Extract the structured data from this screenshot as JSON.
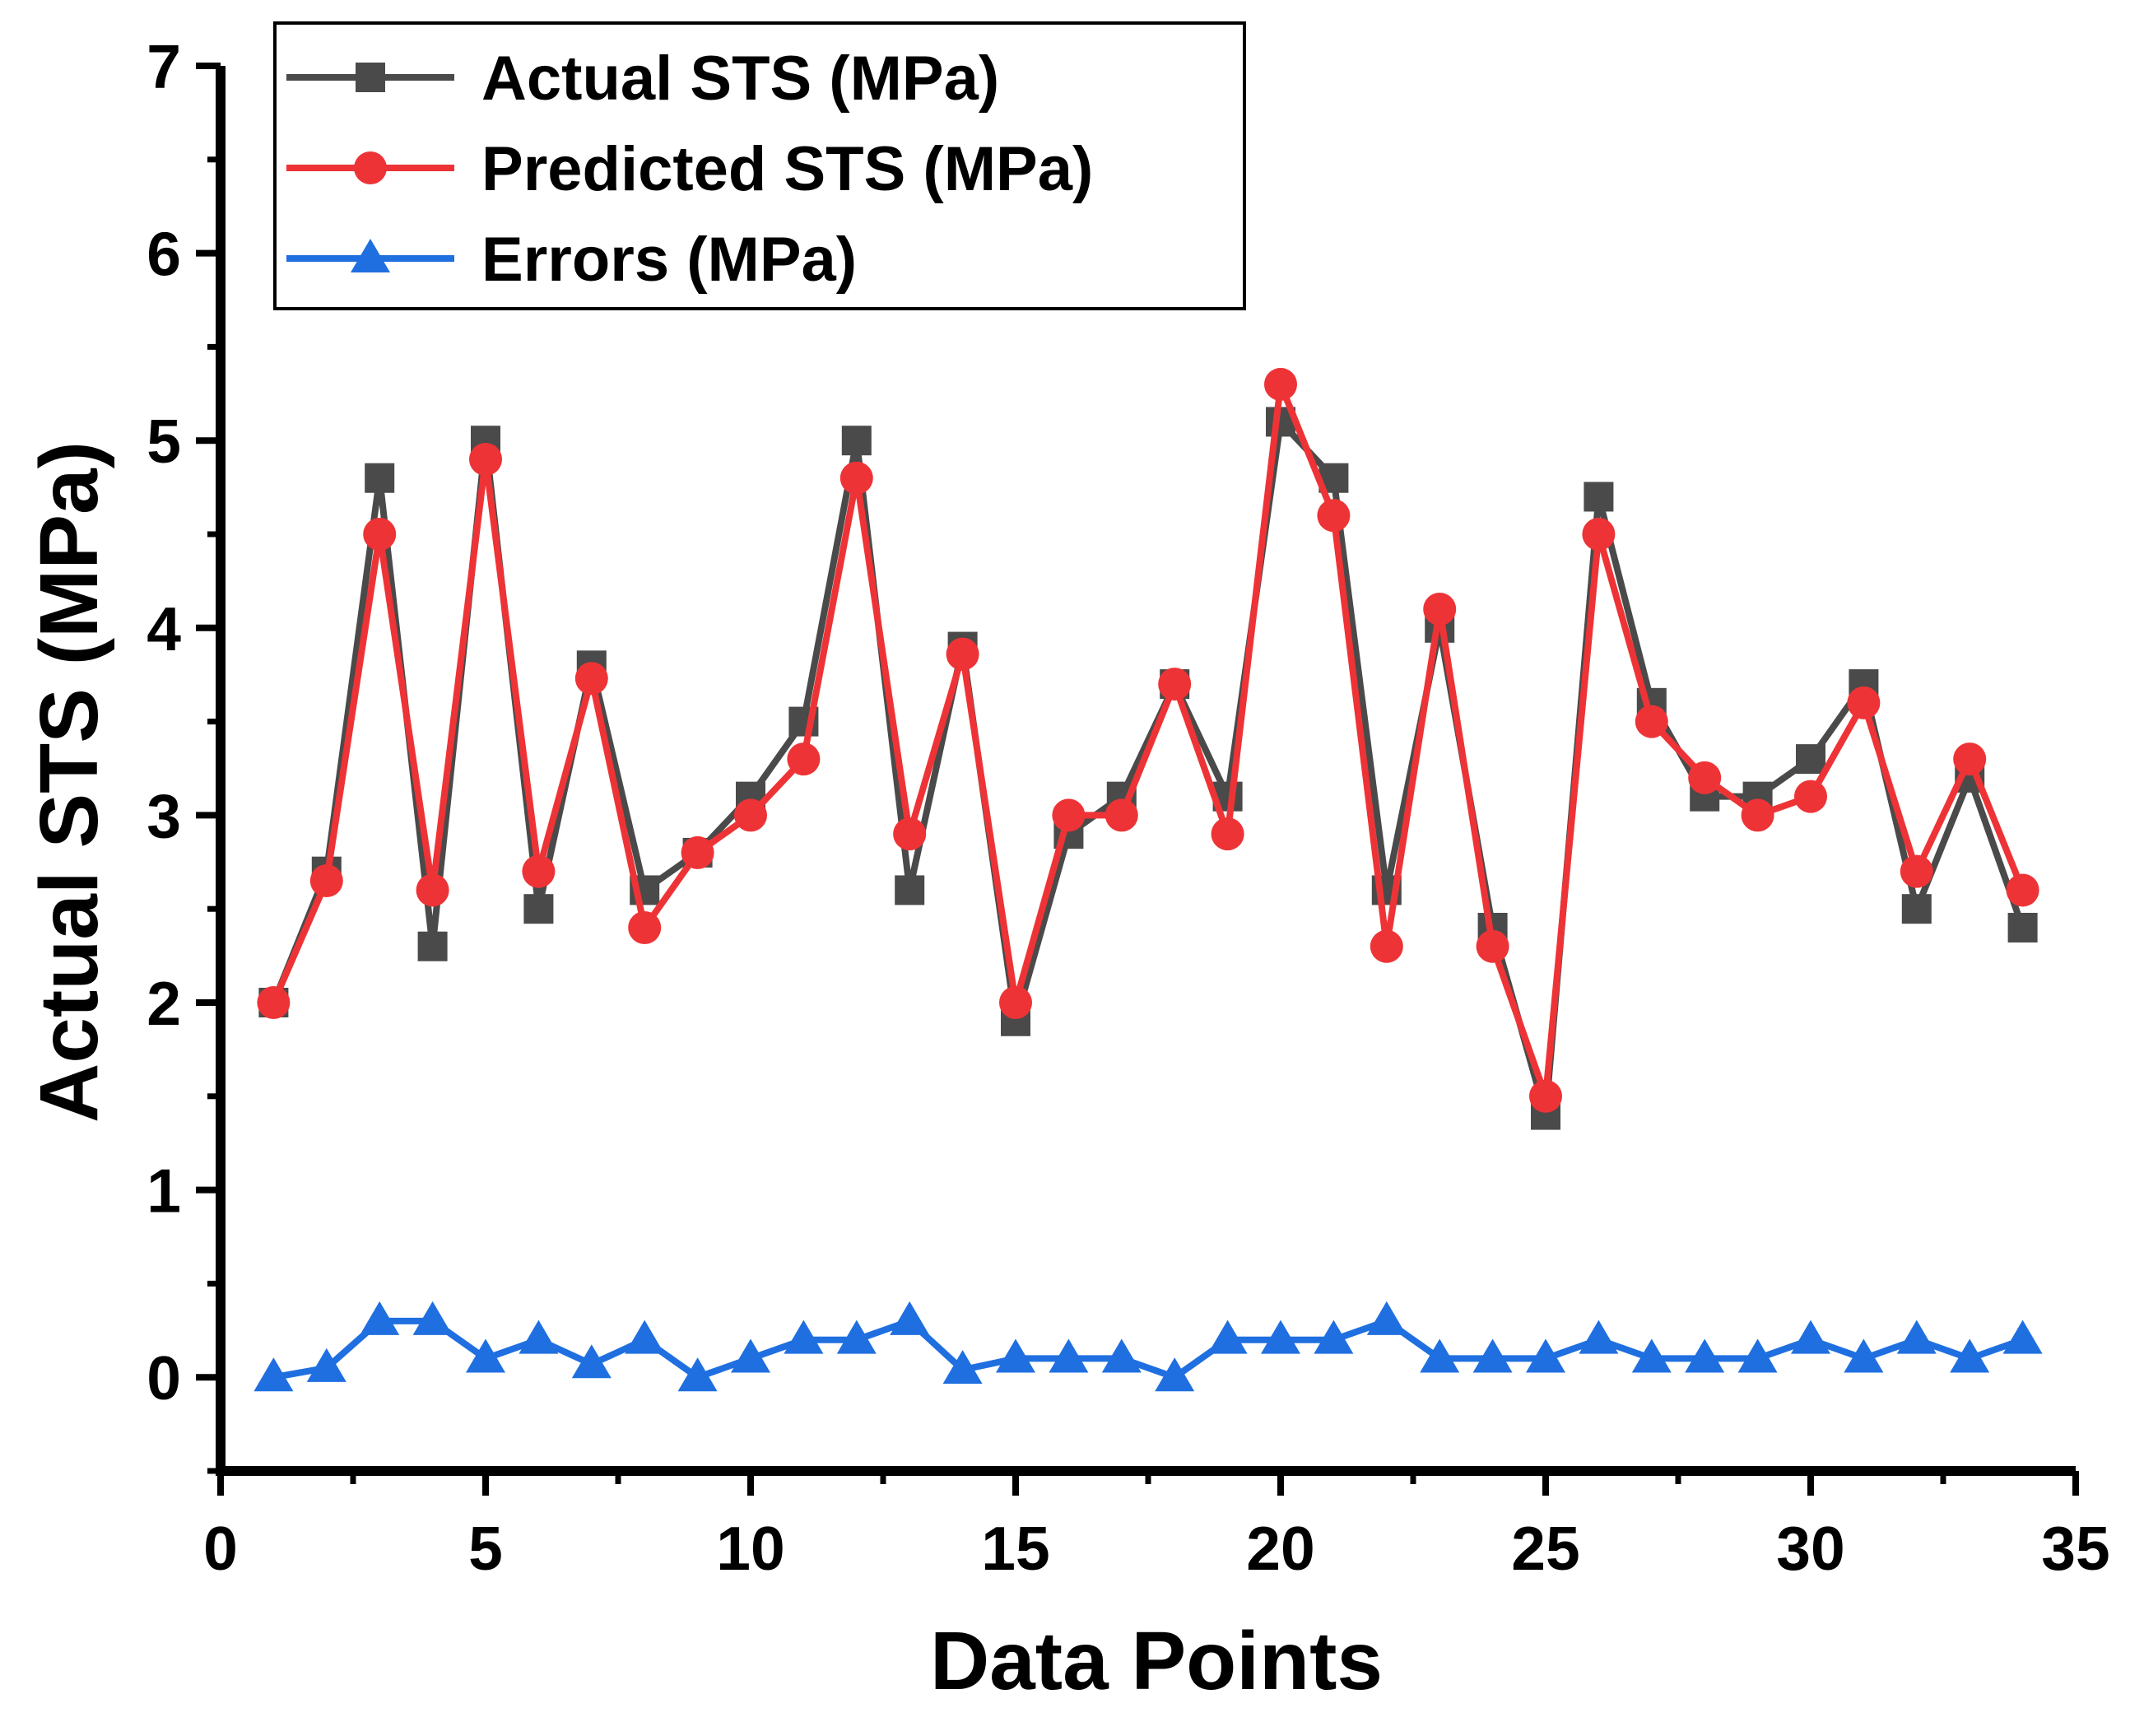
{
  "chart_data": {
    "type": "line",
    "title": "",
    "xlabel": "Data Points",
    "ylabel": "Actual STS (MPa)",
    "xlim": [
      0,
      35
    ],
    "ylim": [
      -0.5,
      7
    ],
    "x_ticks": [
      0,
      5,
      10,
      15,
      20,
      25,
      30,
      35
    ],
    "y_ticks": [
      0,
      1,
      2,
      3,
      4,
      5,
      6,
      7
    ],
    "grid": false,
    "legend_position": "top-left",
    "x": [
      1,
      2,
      3,
      4,
      5,
      6,
      7,
      8,
      9,
      10,
      11,
      12,
      13,
      14,
      15,
      16,
      17,
      18,
      19,
      20,
      21,
      22,
      23,
      24,
      25,
      26,
      27,
      28,
      29,
      30,
      31,
      32,
      33,
      34
    ],
    "series": [
      {
        "name": "Actual STS (MPa)",
        "color": "#4a4a4a",
        "marker": "square",
        "values": [
          2.0,
          2.7,
          4.8,
          2.3,
          5.0,
          2.5,
          3.8,
          2.6,
          2.8,
          3.1,
          3.5,
          5.0,
          2.6,
          3.9,
          1.9,
          2.9,
          3.1,
          3.7,
          3.1,
          5.1,
          4.8,
          2.6,
          4.0,
          2.4,
          1.4,
          4.7,
          3.6,
          3.1,
          3.1,
          3.3,
          3.7,
          2.5,
          3.2,
          2.4
        ]
      },
      {
        "name": "Predicted STS (MPa)",
        "color": "#ee3336",
        "marker": "circle",
        "values": [
          2.0,
          2.65,
          4.5,
          2.6,
          4.9,
          2.7,
          3.73,
          2.4,
          2.8,
          3.0,
          3.3,
          4.8,
          2.9,
          3.86,
          2.0,
          3.0,
          3.0,
          3.7,
          2.9,
          5.3,
          4.6,
          2.3,
          4.1,
          2.3,
          1.5,
          4.5,
          3.5,
          3.2,
          3.0,
          3.1,
          3.6,
          2.7,
          3.3,
          2.6
        ]
      },
      {
        "name": "Errors (MPa)",
        "color": "#1f6fe0",
        "marker": "triangle",
        "values": [
          0.0,
          0.05,
          0.3,
          0.3,
          0.1,
          0.2,
          0.07,
          0.2,
          0.0,
          0.1,
          0.2,
          0.2,
          0.3,
          0.04,
          0.1,
          0.1,
          0.1,
          0.0,
          0.2,
          0.2,
          0.2,
          0.3,
          0.1,
          0.1,
          0.1,
          0.2,
          0.1,
          0.1,
          0.1,
          0.2,
          0.1,
          0.2,
          0.1,
          0.2
        ]
      }
    ]
  }
}
